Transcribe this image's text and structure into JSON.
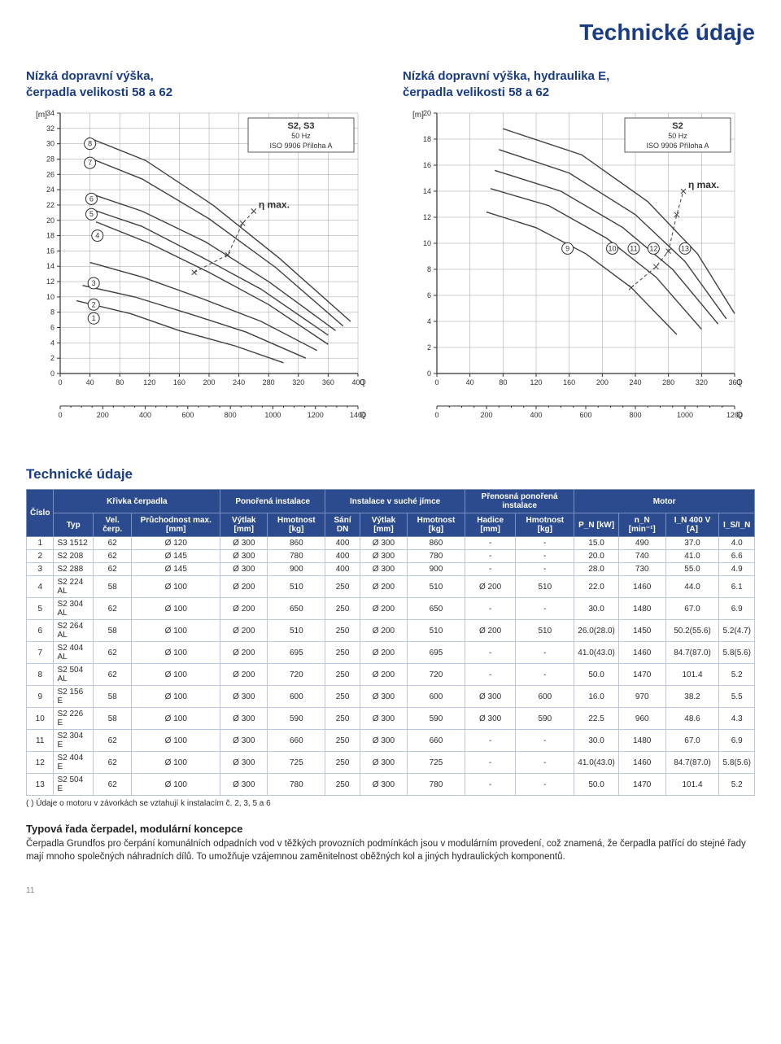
{
  "page_title": "Technické údaje",
  "page_number": "11",
  "chart1": {
    "type": "line",
    "title": "Nízká dopravní výška,\nčerpadla velikosti 58 a 62",
    "box_labels": [
      "S2, S3",
      "50 Hz",
      "ISO 9906  Příloha A"
    ],
    "y_unit": "[m]",
    "x_unit_top": "Q [l/s]",
    "x_unit_bot": "Q [m³/h]",
    "eta_label": "η max.",
    "ylim": [
      0,
      34
    ],
    "ytick_step": 2,
    "yticks": [
      0,
      2,
      4,
      6,
      8,
      10,
      12,
      14,
      16,
      18,
      20,
      22,
      24,
      26,
      28,
      30,
      32,
      34
    ],
    "xlim_top": [
      0,
      400
    ],
    "xtick_step_top": 40,
    "xticks_top": [
      0,
      40,
      80,
      120,
      160,
      200,
      240,
      280,
      320,
      360,
      400
    ],
    "xlim_bot": [
      0,
      1400
    ],
    "xtick_step_bot": 200,
    "xticks_bot": [
      0,
      200,
      400,
      600,
      800,
      1000,
      1200,
      1400
    ],
    "marker_labels": [
      "1",
      "2",
      "3",
      "4",
      "5",
      "6",
      "7",
      "8"
    ],
    "marker_at": [
      [
        45,
        7.2
      ],
      [
        45,
        9.0
      ],
      [
        45,
        11.8
      ],
      [
        50,
        18.0
      ],
      [
        42,
        20.8
      ],
      [
        42,
        22.8
      ],
      [
        40,
        27.5
      ],
      [
        40,
        30.0
      ]
    ],
    "series": [
      {
        "name": "1",
        "pts": [
          [
            22,
            9.5
          ],
          [
            95,
            7.8
          ],
          [
            160,
            5.6
          ],
          [
            235,
            3.6
          ],
          [
            300,
            1.4
          ]
        ]
      },
      {
        "name": "2",
        "pts": [
          [
            30,
            11.5
          ],
          [
            100,
            10.0
          ],
          [
            180,
            7.6
          ],
          [
            250,
            5.4
          ],
          [
            330,
            2.0
          ]
        ]
      },
      {
        "name": "3",
        "pts": [
          [
            40,
            14.5
          ],
          [
            110,
            12.6
          ],
          [
            190,
            9.8
          ],
          [
            270,
            6.8
          ],
          [
            345,
            3.0
          ]
        ]
      },
      {
        "name": "4",
        "pts": [
          [
            48,
            19.8
          ],
          [
            120,
            17.0
          ],
          [
            200,
            13.2
          ],
          [
            280,
            9.0
          ],
          [
            360,
            3.8
          ]
        ]
      },
      {
        "name": "5",
        "pts": [
          [
            40,
            21.5
          ],
          [
            110,
            19.2
          ],
          [
            190,
            15.2
          ],
          [
            270,
            11.0
          ],
          [
            360,
            5.0
          ]
        ]
      },
      {
        "name": "6",
        "pts": [
          [
            40,
            23.5
          ],
          [
            110,
            21.2
          ],
          [
            195,
            17.2
          ],
          [
            280,
            12.0
          ],
          [
            370,
            5.6
          ]
        ]
      },
      {
        "name": "7",
        "pts": [
          [
            38,
            28.2
          ],
          [
            110,
            25.4
          ],
          [
            200,
            20.2
          ],
          [
            290,
            13.8
          ],
          [
            380,
            6.2
          ]
        ]
      },
      {
        "name": "8",
        "pts": [
          [
            38,
            30.8
          ],
          [
            115,
            27.8
          ],
          [
            205,
            22.0
          ],
          [
            295,
            15.0
          ],
          [
            390,
            6.8
          ]
        ]
      }
    ],
    "eta_pts": [
      [
        180,
        13.2
      ],
      [
        225,
        15.5
      ],
      [
        245,
        19.6
      ],
      [
        260,
        21.2
      ]
    ],
    "line_color": "#404040",
    "grid_color": "#9aa0a6",
    "axis_color": "#303030",
    "bg": "#ffffff",
    "text_color": "#303030",
    "title_color": "#193c84",
    "title_fontsize": 15,
    "label_fontsize": 10,
    "tick_fontsize": 9
  },
  "chart2": {
    "type": "line",
    "title": "Nízká dopravní výška, hydraulika E,\nčerpadla velikosti 58 a 62",
    "box_labels": [
      "S2",
      "50 Hz",
      "ISO 9906  Příloha A"
    ],
    "y_unit": "[m]",
    "x_unit_top": "Q [l/s]",
    "x_unit_bot": "Q [m³/h]",
    "eta_label": "η max.",
    "ylim": [
      0,
      20
    ],
    "ytick_step": 2,
    "yticks": [
      0,
      2,
      4,
      6,
      8,
      10,
      12,
      14,
      16,
      18,
      20
    ],
    "xlim_top": [
      0,
      360
    ],
    "xtick_step_top": 40,
    "xticks_top": [
      0,
      40,
      80,
      120,
      160,
      200,
      240,
      280,
      320,
      360
    ],
    "xlim_bot": [
      0,
      1200
    ],
    "xtick_step_bot": 200,
    "xticks_bot": [
      0,
      200,
      400,
      600,
      800,
      1000,
      1200
    ],
    "marker_labels": [
      "9",
      "10",
      "11",
      "12",
      "13"
    ],
    "marker_at": [
      [
        158,
        9.6
      ],
      [
        212,
        9.6
      ],
      [
        238,
        9.6
      ],
      [
        262,
        9.6
      ],
      [
        300,
        9.6
      ]
    ],
    "series": [
      {
        "name": "9",
        "pts": [
          [
            60,
            12.4
          ],
          [
            120,
            11.2
          ],
          [
            180,
            9.2
          ],
          [
            235,
            6.6
          ],
          [
            290,
            3.0
          ]
        ]
      },
      {
        "name": "10",
        "pts": [
          [
            65,
            14.2
          ],
          [
            135,
            12.9
          ],
          [
            205,
            10.4
          ],
          [
            265,
            7.4
          ],
          [
            320,
            3.4
          ]
        ]
      },
      {
        "name": "11",
        "pts": [
          [
            70,
            15.6
          ],
          [
            150,
            14.0
          ],
          [
            225,
            11.2
          ],
          [
            285,
            8.0
          ],
          [
            340,
            3.8
          ]
        ]
      },
      {
        "name": "12",
        "pts": [
          [
            75,
            17.2
          ],
          [
            160,
            15.4
          ],
          [
            240,
            12.2
          ],
          [
            300,
            8.6
          ],
          [
            350,
            4.2
          ]
        ]
      },
      {
        "name": "13",
        "pts": [
          [
            80,
            18.8
          ],
          [
            175,
            16.8
          ],
          [
            255,
            13.2
          ],
          [
            315,
            9.2
          ],
          [
            360,
            4.6
          ]
        ]
      }
    ],
    "eta_pts": [
      [
        235,
        6.6
      ],
      [
        265,
        8.2
      ],
      [
        280,
        9.4
      ],
      [
        290,
        12.2
      ],
      [
        298,
        14.0
      ]
    ],
    "line_color": "#404040",
    "grid_color": "#9aa0a6",
    "axis_color": "#303030",
    "bg": "#ffffff",
    "text_color": "#303030",
    "title_color": "#193c84",
    "title_fontsize": 15,
    "label_fontsize": 10,
    "tick_fontsize": 9
  },
  "table": {
    "section_title": "Technické údaje",
    "group_headers": [
      "Křivka čerpadla",
      "Ponořená instalace",
      "Instalace v suché jímce",
      "Přenosná ponořená instalace",
      "Motor"
    ],
    "columns": [
      "Číslo",
      "Typ",
      "Vel. čerp.",
      "Průchodnost max. [mm]",
      "Výtlak [mm]",
      "Hmotnost [kg]",
      "Sání DN",
      "Výtlak [mm]",
      "Hmotnost [kg]",
      "Hadice [mm]",
      "Hmotnost [kg]",
      "P_N [kW]",
      "n_N [min⁻¹]",
      "I_N 400 V [A]",
      "I_S/I_N"
    ],
    "rows": [
      [
        "1",
        "S3 1512",
        "62",
        "Ø 120",
        "Ø 300",
        "860",
        "400",
        "Ø 300",
        "860",
        "-",
        "-",
        "15.0",
        "490",
        "37.0",
        "4.0"
      ],
      [
        "2",
        "S2 208",
        "62",
        "Ø 145",
        "Ø 300",
        "780",
        "400",
        "Ø 300",
        "780",
        "-",
        "-",
        "20.0",
        "740",
        "41.0",
        "6.6"
      ],
      [
        "3",
        "S2 288",
        "62",
        "Ø 145",
        "Ø 300",
        "900",
        "400",
        "Ø 300",
        "900",
        "-",
        "-",
        "28.0",
        "730",
        "55.0",
        "4.9"
      ],
      [
        "4",
        "S2 224 AL",
        "58",
        "Ø 100",
        "Ø 200",
        "510",
        "250",
        "Ø 200",
        "510",
        "Ø 200",
        "510",
        "22.0",
        "1460",
        "44.0",
        "6.1"
      ],
      [
        "5",
        "S2 304 AL",
        "62",
        "Ø 100",
        "Ø 200",
        "650",
        "250",
        "Ø 200",
        "650",
        "-",
        "-",
        "30.0",
        "1480",
        "67.0",
        "6.9"
      ],
      [
        "6",
        "S2 264 AL",
        "58",
        "Ø 100",
        "Ø 200",
        "510",
        "250",
        "Ø 200",
        "510",
        "Ø 200",
        "510",
        "26.0(28.0)",
        "1450",
        "50.2(55.6)",
        "5.2(4.7)"
      ],
      [
        "7",
        "S2 404 AL",
        "62",
        "Ø 100",
        "Ø 200",
        "695",
        "250",
        "Ø 200",
        "695",
        "-",
        "-",
        "41.0(43.0)",
        "1460",
        "84.7(87.0)",
        "5.8(5.6)"
      ],
      [
        "8",
        "S2 504 AL",
        "62",
        "Ø 100",
        "Ø 200",
        "720",
        "250",
        "Ø 200",
        "720",
        "-",
        "-",
        "50.0",
        "1470",
        "101.4",
        "5.2"
      ],
      [
        "9",
        "S2 156 E",
        "58",
        "Ø 100",
        "Ø 300",
        "600",
        "250",
        "Ø 300",
        "600",
        "Ø 300",
        "600",
        "16.0",
        "970",
        "38.2",
        "5.5"
      ],
      [
        "10",
        "S2 226 E",
        "58",
        "Ø 100",
        "Ø 300",
        "590",
        "250",
        "Ø 300",
        "590",
        "Ø 300",
        "590",
        "22.5",
        "960",
        "48.6",
        "4.3"
      ],
      [
        "11",
        "S2 304 E",
        "62",
        "Ø 100",
        "Ø 300",
        "660",
        "250",
        "Ø 300",
        "660",
        "-",
        "-",
        "30.0",
        "1480",
        "67.0",
        "6.9"
      ],
      [
        "12",
        "S2 404 E",
        "62",
        "Ø 100",
        "Ø 300",
        "725",
        "250",
        "Ø 300",
        "725",
        "-",
        "-",
        "41.0(43.0)",
        "1460",
        "84.7(87.0)",
        "5.8(5.6)"
      ],
      [
        "13",
        "S2 504 E",
        "62",
        "Ø 100",
        "Ø 300",
        "780",
        "250",
        "Ø 300",
        "780",
        "-",
        "-",
        "50.0",
        "1470",
        "101.4",
        "5.2"
      ]
    ],
    "footnote": "( ) Údaje o motoru v závorkách se vztahují k instalacím č. 2, 3, 5 a 6",
    "header_bg": "#2c4b8f",
    "header_fg": "#ffffff",
    "cell_border": "#bcc6de",
    "font_size": 10
  },
  "description": {
    "heading": "Typová řada čerpadel, modulární koncepce",
    "body": "Čerpadla Grundfos pro čerpání komunálních odpadních vod v těžkých provozních podmínkách jsou v modulárním provedení, což znamená, že čerpadla patřící do stejné řady  mají mnoho společných náhradních dílů. To umožňuje vzájemnou zaměnitelnost oběžných kol a jiných hydraulických komponentů."
  }
}
